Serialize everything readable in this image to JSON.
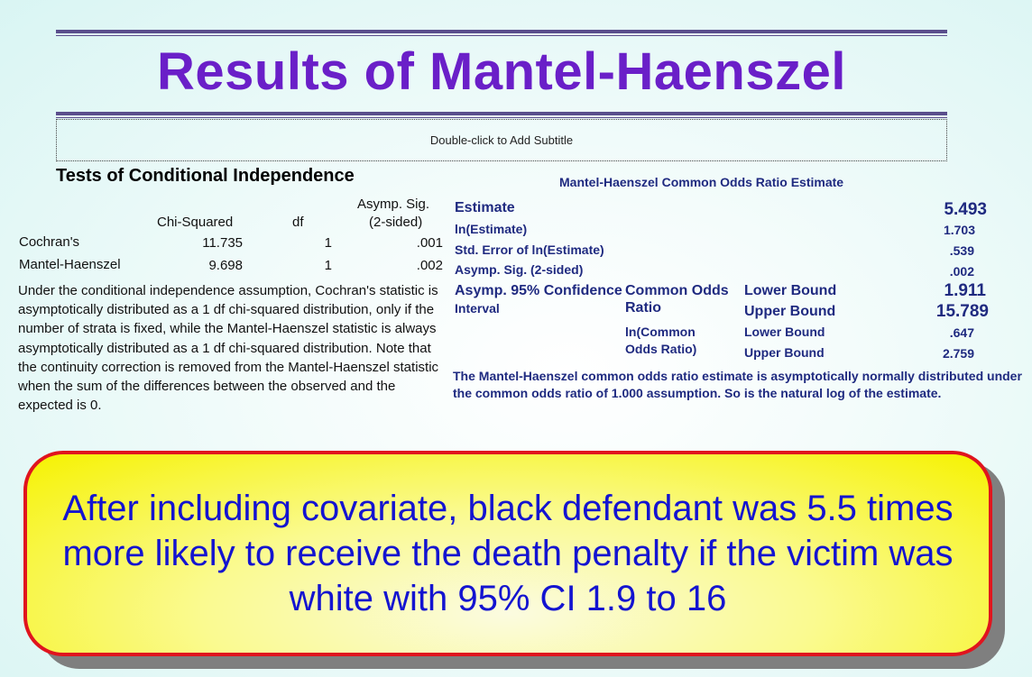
{
  "slide": {
    "title": "Results of Mantel-Haenszel",
    "subtitle_placeholder": "Double-click to Add Subtitle"
  },
  "left_table": {
    "heading": "Tests of Conditional Independence",
    "columns": {
      "chi": "Chi-Squared",
      "df": "df",
      "sig_line1": "Asymp. Sig.",
      "sig_line2": "(2-sided)"
    },
    "rows": [
      {
        "label": "Cochran's",
        "chi": "11.735",
        "df": "1",
        "sig": ".001"
      },
      {
        "label": "Mantel-Haenszel",
        "chi": "9.698",
        "df": "1",
        "sig": ".002"
      }
    ],
    "note": "Under the conditional independence assumption, Cochran's statistic is asymptotically distributed as a 1 df chi-squared distribution, only if the number of strata is fixed, while the Mantel-Haenszel statistic is always asymptotically distributed as a 1 df chi-squared distribution. Note that the continuity correction is removed from the Mantel-Haenszel statistic when the sum of the differences between the observed and the expected is 0."
  },
  "right_table": {
    "heading": "Mantel-Haenszel Common Odds Ratio Estimate",
    "estimate_label": "Estimate",
    "estimate_value": "5.493",
    "ln_estimate_label": "ln(Estimate)",
    "ln_estimate_value": "1.703",
    "se_label": "Std. Error of ln(Estimate)",
    "se_value": ".539",
    "sig_label": "Asymp. Sig. (2-sided)",
    "sig_value": ".002",
    "ci_label_line1": "Asymp. 95% Confidence",
    "ci_label_line2": "Interval",
    "common_odds_line1": "Common Odds",
    "common_odds_line2": "Ratio",
    "ln_common_line1": "ln(Common",
    "ln_common_line2": "Odds Ratio)",
    "lower_bound_label": "Lower Bound",
    "upper_bound_label": "Upper Bound",
    "or_lower": "1.911",
    "or_upper": "15.789",
    "ln_lower_label": "Lower Bound",
    "ln_upper_label": "Upper Bound",
    "ln_lower": ".647",
    "ln_upper": "2.759",
    "note": "The Mantel-Haenszel common odds ratio estimate is asymptotically normally distributed under the common odds ratio of 1.000 assumption. So is the natural log of the estimate."
  },
  "callout": {
    "text": "After including covariate, black defendant was 5.5 times more likely to receive the death penalty if the victim was white with 95% CI 1.9 to 16"
  },
  "colors": {
    "title": "#6a1fc8",
    "table_text": "#1f2a80",
    "callout_border": "#e0141e",
    "callout_fill": "#f6f200",
    "callout_text": "#1414d0"
  }
}
